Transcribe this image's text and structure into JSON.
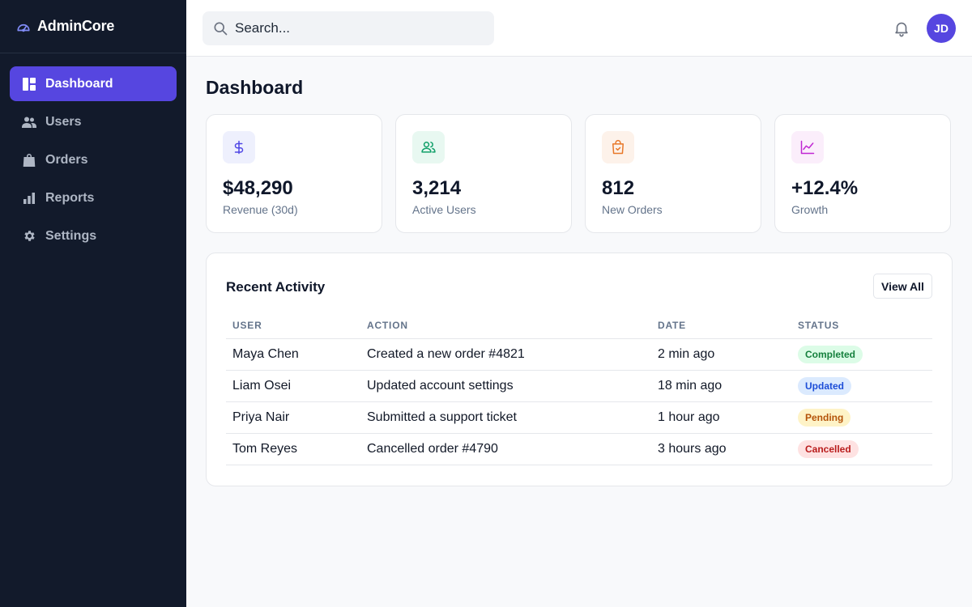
{
  "app": {
    "name": "AdminCore"
  },
  "sidebar": {
    "items": [
      {
        "label": "Dashboard",
        "icon": "dashboard-icon",
        "active": true
      },
      {
        "label": "Users",
        "icon": "users-icon"
      },
      {
        "label": "Orders",
        "icon": "shopping-bag-icon"
      },
      {
        "label": "Reports",
        "icon": "bar-chart-icon"
      },
      {
        "label": "Settings",
        "icon": "gear-icon"
      }
    ]
  },
  "topbar": {
    "search_placeholder": "Search...",
    "avatar_initials": "JD"
  },
  "main": {
    "title": "Dashboard",
    "stats": [
      {
        "value": "$48,290",
        "label": "Revenue (30d)",
        "icon": "dollar-icon",
        "icon_bg": "#eef0fd",
        "icon_color": "#4f46e5"
      },
      {
        "value": "3,214",
        "label": "Active Users",
        "icon": "users-icon",
        "icon_bg": "#e8f8f1",
        "icon_color": "#12a06a"
      },
      {
        "value": "812",
        "label": "New Orders",
        "icon": "shopping-bag-icon",
        "icon_bg": "#fdf2ea",
        "icon_color": "#e8782a"
      },
      {
        "value": "+12.4%",
        "label": "Growth",
        "icon": "trend-up-icon",
        "icon_bg": "#fbeefb",
        "icon_color": "#c026d3"
      }
    ],
    "activity": {
      "title": "Recent Activity",
      "view_all_label": "View All",
      "columns": [
        "USER",
        "ACTION",
        "DATE",
        "STATUS"
      ],
      "rows": [
        {
          "user": "Maya Chen",
          "action": "Created a new order #4821",
          "date": "2 min ago",
          "status": "Completed"
        },
        {
          "user": "Liam Osei",
          "action": "Updated account settings",
          "date": "18 min ago",
          "status": "Updated"
        },
        {
          "user": "Priya Nair",
          "action": "Submitted a support ticket",
          "date": "1 hour ago",
          "status": "Pending"
        },
        {
          "user": "Tom Reyes",
          "action": "Cancelled order #4790",
          "date": "3 hours ago",
          "status": "Cancelled"
        }
      ]
    }
  },
  "colors": {
    "accent": "#5646e0",
    "sidebar_bg": "#121a2b",
    "status_completed_bg": "#dcfce7",
    "status_completed_fg": "#15803d",
    "status_updated_bg": "#dbeafe",
    "status_updated_fg": "#1d4ed8",
    "status_pending_bg": "#fef3c7",
    "status_pending_fg": "#b45309",
    "status_cancelled_bg": "#fee2e2",
    "status_cancelled_fg": "#b91c1c"
  }
}
